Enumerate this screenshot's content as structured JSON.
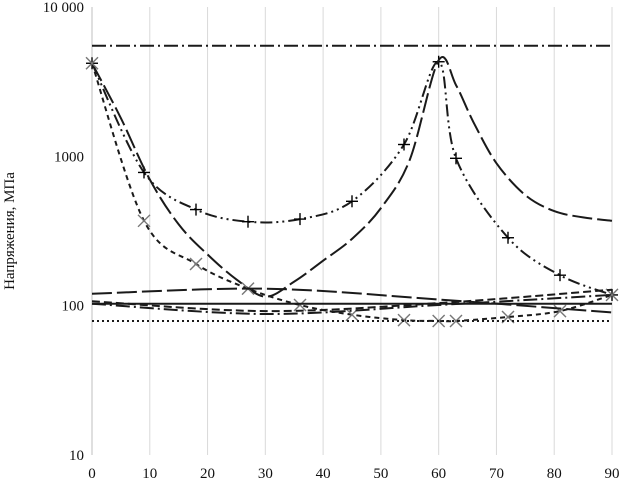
{
  "chart_data": {
    "type": "line",
    "title": "",
    "xlabel": "",
    "ylabel": "Напряжения, МПа",
    "xlim": [
      0,
      90
    ],
    "ylim": [
      10,
      10000
    ],
    "yscale": "log",
    "grid": "vertical",
    "legend": "none",
    "x_ticks": [
      "0",
      "10",
      "20",
      "30",
      "40",
      "50",
      "60",
      "70",
      "80",
      "90"
    ],
    "y_ticks": [
      "10",
      "100",
      "1000",
      "10 000"
    ],
    "series": [
      {
        "dash": "dashdot",
        "x": [
          0,
          90
        ],
        "y": [
          5500,
          5500
        ]
      },
      {
        "dash": "dashdotdot",
        "marker": "plus",
        "x": [
          0,
          9,
          18,
          27,
          36,
          45,
          54,
          60,
          63,
          72,
          81,
          90
        ],
        "y": [
          4200,
          780,
          440,
          365,
          380,
          500,
          1200,
          4300,
          970,
          285,
          160,
          118
        ]
      },
      {
        "dash": "longdash",
        "x": [
          0,
          5,
          10,
          15,
          20,
          25,
          30,
          35,
          40,
          45,
          50,
          55,
          60,
          63,
          66,
          70,
          75,
          80,
          85,
          90
        ],
        "y": [
          4200,
          1800,
          700,
          350,
          220,
          150,
          115,
          145,
          200,
          280,
          450,
          950,
          4400,
          3000,
          1700,
          900,
          550,
          430,
          390,
          370
        ]
      },
      {
        "dash": "shortdash",
        "marker": "cross",
        "x": [
          0,
          9,
          18,
          27,
          36,
          45,
          54,
          60,
          63,
          72,
          81,
          90
        ],
        "y": [
          4200,
          370,
          190,
          130,
          101,
          87,
          80,
          79,
          79,
          84,
          92,
          118
        ]
      },
      {
        "dash": "solid",
        "x": [
          0,
          90
        ],
        "y": [
          103,
          103
        ]
      },
      {
        "dash": "longdash",
        "x": [
          0,
          30,
          60,
          90
        ],
        "y": [
          120,
          130,
          110,
          90
        ]
      },
      {
        "dash": "dash",
        "x": [
          0,
          30,
          60,
          90
        ],
        "y": [
          107,
          92,
          104,
          128
        ]
      },
      {
        "dash": "dashdot",
        "x": [
          0,
          30,
          60,
          90
        ],
        "y": [
          103,
          88,
          101,
          118
        ]
      },
      {
        "dash": "dot",
        "x": [
          0,
          90
        ],
        "y": [
          79,
          79
        ]
      }
    ]
  }
}
